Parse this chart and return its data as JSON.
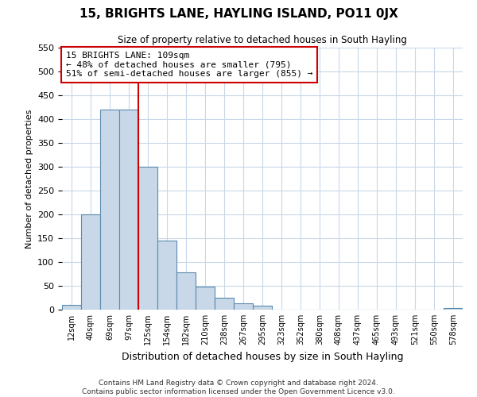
{
  "title": "15, BRIGHTS LANE, HAYLING ISLAND, PO11 0JX",
  "subtitle": "Size of property relative to detached houses in South Hayling",
  "xlabel": "Distribution of detached houses by size in South Hayling",
  "ylabel": "Number of detached properties",
  "bin_labels": [
    "12sqm",
    "40sqm",
    "69sqm",
    "97sqm",
    "125sqm",
    "154sqm",
    "182sqm",
    "210sqm",
    "238sqm",
    "267sqm",
    "295sqm",
    "323sqm",
    "352sqm",
    "380sqm",
    "408sqm",
    "437sqm",
    "465sqm",
    "493sqm",
    "521sqm",
    "550sqm",
    "578sqm"
  ],
  "bar_values": [
    10,
    200,
    420,
    420,
    300,
    145,
    78,
    48,
    25,
    13,
    8,
    0,
    0,
    0,
    0,
    0,
    0,
    0,
    0,
    0,
    3
  ],
  "bar_color": "#c8d8e8",
  "bar_edge_color": "#5a8ab0",
  "ylim": [
    0,
    550
  ],
  "yticks": [
    0,
    50,
    100,
    150,
    200,
    250,
    300,
    350,
    400,
    450,
    500,
    550
  ],
  "property_line_x": 4,
  "property_line_color": "#cc0000",
  "annotation_title": "15 BRIGHTS LANE: 109sqm",
  "annotation_line1": "← 48% of detached houses are smaller (795)",
  "annotation_line2": "51% of semi-detached houses are larger (855) →",
  "annotation_box_color": "#ffffff",
  "annotation_box_edge_color": "#cc0000",
  "footer_line1": "Contains HM Land Registry data © Crown copyright and database right 2024.",
  "footer_line2": "Contains public sector information licensed under the Open Government Licence v3.0.",
  "background_color": "#ffffff",
  "grid_color": "#c8d8e8"
}
